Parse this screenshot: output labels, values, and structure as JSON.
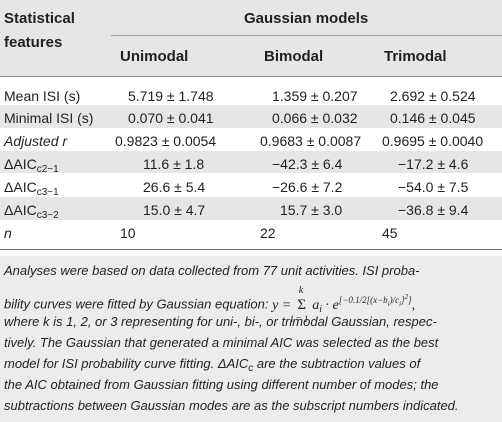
{
  "table": {
    "header": {
      "stat_line1": "Statistical",
      "stat_line2": "features",
      "group": "Gaussian models",
      "cols": [
        "Unimodal",
        "Bimodal",
        "Trimodal"
      ]
    },
    "rows": [
      {
        "label": "Mean ISI (s)",
        "values": [
          "5.719 ± 1.748",
          "1.359 ± 0.207",
          "2.692 ± 0.524"
        ]
      },
      {
        "label": "Minimal ISI (s)",
        "values": [
          "0.070 ± 0.041",
          "0.066 ± 0.032",
          "0.146 ± 0.045"
        ]
      },
      {
        "label": "Adjusted r",
        "values": [
          "0.9823 ± 0.0054",
          "0.9683 ± 0.0087",
          "0.9695 ± 0.0040"
        ]
      },
      {
        "label_main": "ΔAIC",
        "label_sub": "c2−1",
        "values": [
          "11.6 ± 1.8",
          "−42.3 ± 6.4",
          "−17.2 ± 4.6"
        ]
      },
      {
        "label_main": "ΔAIC",
        "label_sub": "c3−1",
        "values": [
          "26.6 ± 5.4",
          "−26.6 ± 7.2",
          "−54.0 ± 7.5"
        ]
      },
      {
        "label_main": "ΔAIC",
        "label_sub": "c3−2",
        "values": [
          "15.0 ± 4.7",
          "15.7 ± 3.0",
          "−36.8 ± 9.4"
        ]
      },
      {
        "label": "n",
        "values": [
          "10",
          "22",
          "45"
        ]
      }
    ]
  },
  "footnote": {
    "l1": "Analyses were based on data collected from 77 unit activities. ISI proba-",
    "l2a": "bility curves were fitted by Gaussian equation:",
    "l2_eq_y": "y =",
    "l2_sum_top": "k",
    "l2_sum": "Σ",
    "l2_sum_bot": "i = 1",
    "l2_eq_rest": "a",
    "l2_eq_i": "i",
    "l2_eq_e": "· e",
    "l2_eq_exp": "[−0.1/2[(x−b",
    "l2_eq_exp_i": "i",
    "l2_eq_exp2": ")/c",
    "l2_eq_exp_i2": "i",
    "l2_eq_exp3": "]",
    "l2_eq_exp_2": "2",
    "l2_eq_exp4": "]",
    "l2_eq_end": ",",
    "l3": "where k is 1, 2, or 3 representing for uni-, bi-, or trimodal Gaussian, respec-",
    "l4": "tively. The Gaussian that generated a minimal AIC was selected as the best",
    "l5a": "model for ISI probability curve fitting. ΔAIC",
    "l5_sub": "c",
    "l5b": " are the subtraction values of",
    "l6": "the AIC obtained from Gaussian fitting using different number of modes; the",
    "l7": "subtractions between Gaussian modes are as the subscript numbers indicated."
  }
}
